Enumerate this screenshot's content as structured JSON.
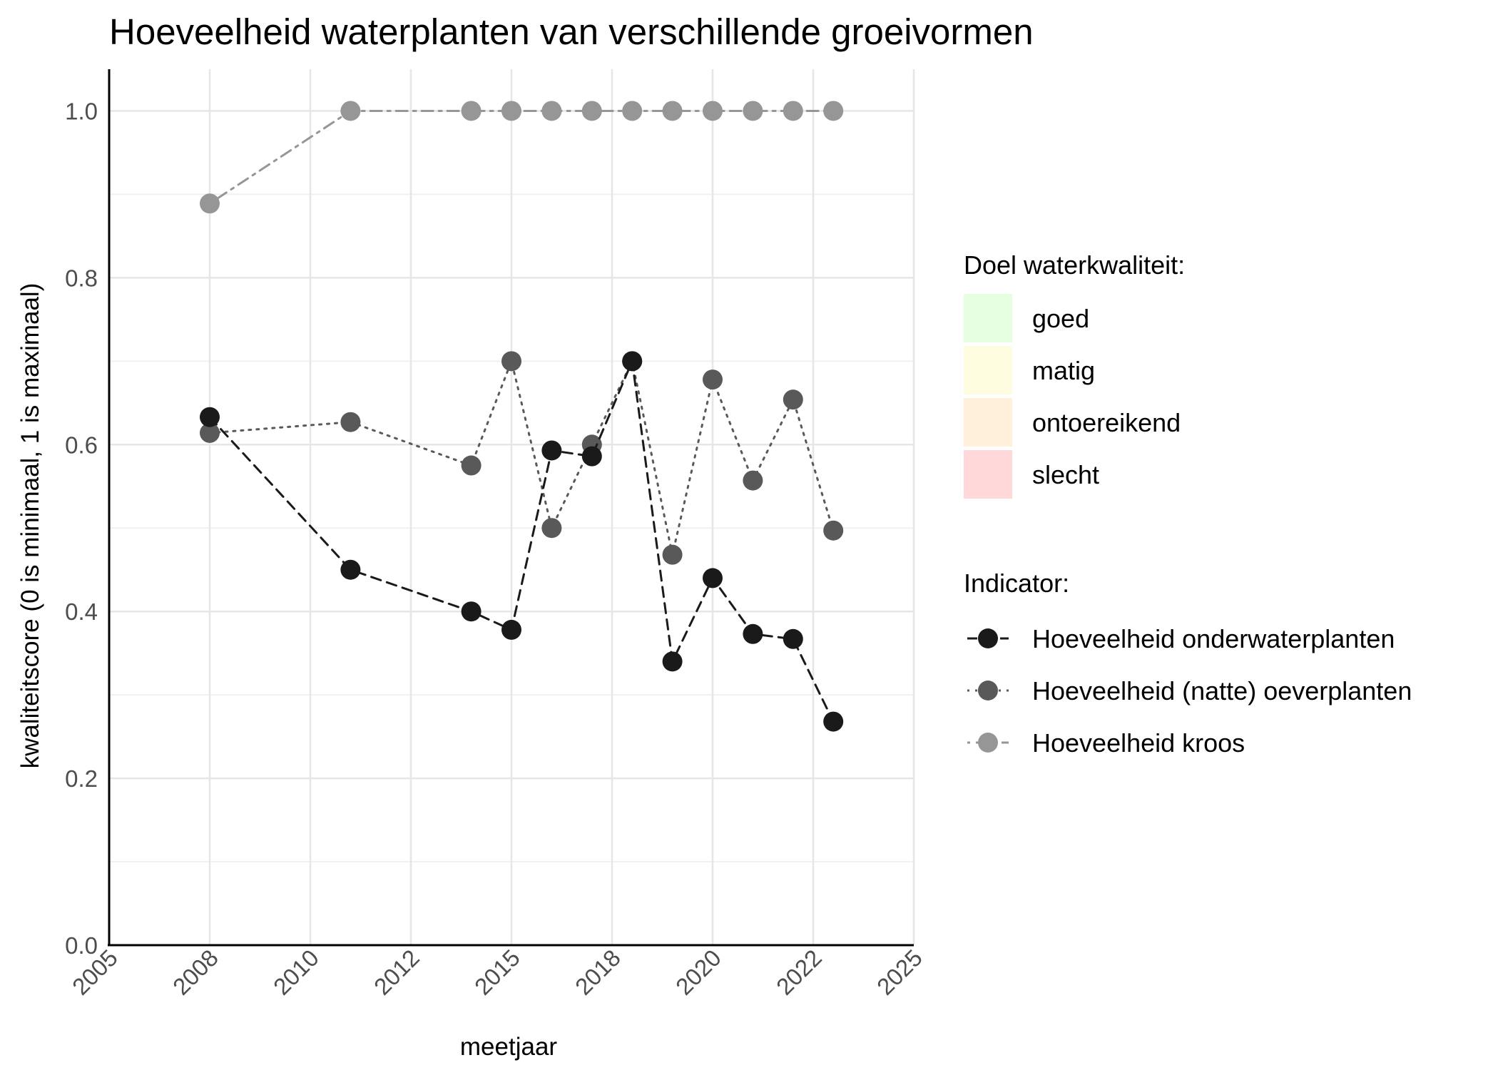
{
  "chart_data": {
    "type": "line",
    "title": "Hoeveelheid waterplanten van verschillende groeivormen",
    "xlabel": "meetjaar",
    "ylabel": "kwaliteitscore (0 is minimaal, 1 is maximaal)",
    "xlim": [
      2005,
      2025
    ],
    "ylim": [
      0,
      1.05
    ],
    "x_ticks": [
      "2005",
      "2008",
      "2010",
      "2012",
      "2015",
      "2018",
      "2020",
      "2022",
      "2025"
    ],
    "y_ticks": [
      "0.0",
      "0.2",
      "0.4",
      "0.6",
      "0.8",
      "1.0"
    ],
    "grid": true,
    "legend_position": "right",
    "series": [
      {
        "name": "Hoeveelheid onderwaterplanten",
        "color": "#1a1a1a",
        "dash": "dashed",
        "points": [
          [
            2007.5,
            0.633
          ],
          [
            2011,
            0.45
          ],
          [
            2014,
            0.4
          ],
          [
            2015,
            0.378
          ],
          [
            2016,
            0.593
          ],
          [
            2017,
            0.586
          ],
          [
            2018,
            0.7
          ],
          [
            2019,
            0.34
          ],
          [
            2020,
            0.44
          ],
          [
            2021,
            0.373
          ],
          [
            2022,
            0.367
          ],
          [
            2023,
            0.268
          ]
        ]
      },
      {
        "name": "Hoeveelheid (natte) oeverplanten",
        "color": "#595959",
        "dash": "dotted",
        "points": [
          [
            2007.5,
            0.614
          ],
          [
            2011,
            0.627
          ],
          [
            2014,
            0.575
          ],
          [
            2015,
            0.7
          ],
          [
            2016,
            0.5
          ],
          [
            2017,
            0.6
          ],
          [
            2018,
            0.7
          ],
          [
            2019,
            0.468
          ],
          [
            2020,
            0.678
          ],
          [
            2021,
            0.557
          ],
          [
            2022,
            0.654
          ],
          [
            2023,
            0.497
          ]
        ]
      },
      {
        "name": "Hoeveelheid kroos",
        "color": "#969696",
        "dash": "dotdash",
        "points": [
          [
            2007.5,
            0.889
          ],
          [
            2011,
            1.0
          ],
          [
            2014,
            1.0
          ],
          [
            2015,
            1.0
          ],
          [
            2016,
            1.0
          ],
          [
            2017,
            1.0
          ],
          [
            2018,
            1.0
          ],
          [
            2019,
            1.0
          ],
          [
            2020,
            1.0
          ],
          [
            2021,
            1.0
          ],
          [
            2022,
            1.0
          ],
          [
            2023,
            1.0
          ]
        ]
      }
    ],
    "legend_quality": {
      "title": "Doel waterkwaliteit:",
      "items": [
        {
          "label": "goed",
          "color": "#e5ffe0"
        },
        {
          "label": "matig",
          "color": "#fffddf"
        },
        {
          "label": "ontoereikend",
          "color": "#fff0dc"
        },
        {
          "label": "slecht",
          "color": "#ffd9d9"
        }
      ]
    },
    "legend_indicator": {
      "title": "Indicator:"
    }
  }
}
